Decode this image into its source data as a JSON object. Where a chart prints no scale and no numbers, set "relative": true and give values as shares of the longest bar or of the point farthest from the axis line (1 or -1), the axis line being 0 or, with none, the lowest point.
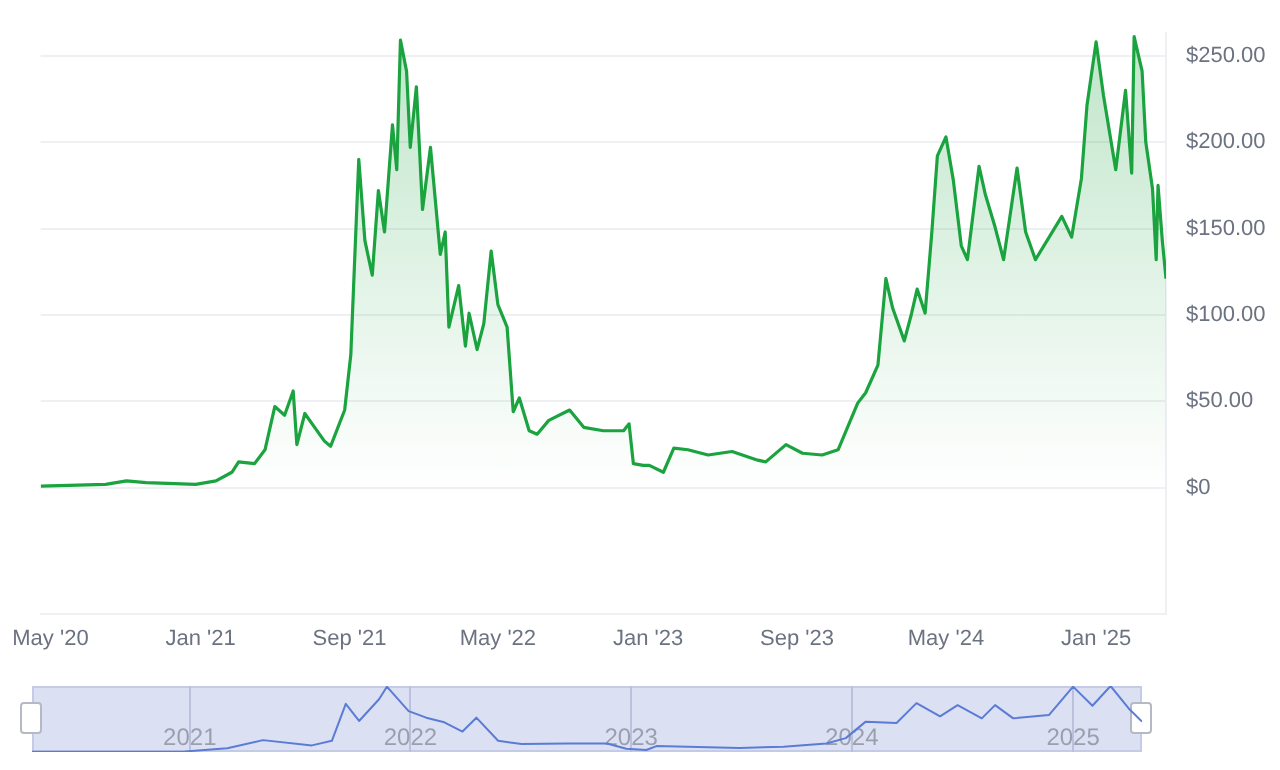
{
  "chart_data": [
    {
      "type": "area",
      "xlim": [
        "2020-04-15",
        "2025-04-25"
      ],
      "ylim": [
        -73,
        263
      ],
      "xticks": [
        {
          "value": "2020-05-01",
          "label": "May '20"
        },
        {
          "value": "2021-01-01",
          "label": "Jan '21"
        },
        {
          "value": "2021-09-01",
          "label": "Sep '21"
        },
        {
          "value": "2022-05-01",
          "label": "May '22"
        },
        {
          "value": "2023-01-01",
          "label": "Jan '23"
        },
        {
          "value": "2023-09-01",
          "label": "Sep '23"
        },
        {
          "value": "2024-05-01",
          "label": "May '24"
        },
        {
          "value": "2025-01-01",
          "label": "Jan '25"
        }
      ],
      "yticks": [
        {
          "value": 0,
          "label": "$0"
        },
        {
          "value": 50,
          "label": "$50.00"
        },
        {
          "value": 100,
          "label": "$100.00"
        },
        {
          "value": 150,
          "label": "$150.00"
        },
        {
          "value": 200,
          "label": "$200.00"
        },
        {
          "value": 250,
          "label": "$250.00"
        }
      ],
      "grid": "y",
      "series": [
        {
          "color": "#1aa33f",
          "x": [
            "2020-04-15",
            "2020-07-30",
            "2020-09-02",
            "2020-10-04",
            "2020-12-24",
            "2021-01-26",
            "2021-02-21",
            "2021-03-04",
            "2021-03-30",
            "2021-04-16",
            "2021-05-02",
            "2021-05-18",
            "2021-06-01",
            "2021-06-07",
            "2021-06-20",
            "2021-07-06",
            "2021-07-22",
            "2021-08-01",
            "2021-08-24",
            "2021-09-03",
            "2021-09-16",
            "2021-09-26",
            "2021-10-08",
            "2021-10-18",
            "2021-10-28",
            "2021-11-10",
            "2021-11-17",
            "2021-11-23",
            "2021-12-03",
            "2021-12-09",
            "2021-12-19",
            "2021-12-29",
            "2022-01-11",
            "2022-01-27",
            "2022-02-04",
            "2022-02-10",
            "2022-02-26",
            "2022-03-09",
            "2022-03-15",
            "2022-03-28",
            "2022-04-08",
            "2022-04-20",
            "2022-05-01",
            "2022-05-16",
            "2022-05-26",
            "2022-06-05",
            "2022-06-21",
            "2022-07-04",
            "2022-07-23",
            "2022-08-26",
            "2022-09-18",
            "2022-10-20",
            "2022-11-22",
            "2022-12-01",
            "2022-12-08",
            "2022-12-24",
            "2023-01-03",
            "2023-01-26",
            "2023-02-12",
            "2023-03-07",
            "2023-04-09",
            "2023-05-18",
            "2023-06-29",
            "2023-07-12",
            "2023-08-14",
            "2023-09-10",
            "2023-10-12",
            "2023-11-07",
            "2023-11-20",
            "2023-12-09",
            "2023-12-22",
            "2024-01-11",
            "2024-01-24",
            "2024-02-04",
            "2024-02-23",
            "2024-03-06",
            "2024-03-15",
            "2024-03-28",
            "2024-04-08",
            "2024-04-17",
            "2024-05-01",
            "2024-05-13",
            "2024-05-26",
            "2024-06-05",
            "2024-06-24",
            "2024-07-04",
            "2024-07-20",
            "2024-08-03",
            "2024-08-25",
            "2024-09-08",
            "2024-09-24",
            "2024-11-06",
            "2024-11-22",
            "2024-12-08",
            "2024-12-17",
            "2025-01-01",
            "2025-01-13",
            "2025-02-02",
            "2025-02-18",
            "2025-02-28",
            "2025-03-04",
            "2025-03-17",
            "2025-03-23",
            "2025-04-03",
            "2025-04-09",
            "2025-04-12",
            "2025-04-19",
            "2025-04-25"
          ],
          "values": [
            1,
            2,
            4,
            3,
            2,
            4,
            9,
            15,
            14,
            22,
            47,
            42,
            56,
            25,
            43,
            35,
            27,
            24,
            45,
            77,
            190,
            143,
            123,
            172,
            148,
            210,
            184,
            259,
            241,
            197,
            232,
            161,
            197,
            135,
            148,
            93,
            117,
            82,
            101,
            80,
            95,
            137,
            106,
            93,
            44,
            52,
            33,
            31,
            39,
            45,
            35,
            33,
            33,
            37,
            14,
            13,
            13,
            9,
            23,
            22,
            19,
            21,
            16,
            15,
            25,
            20,
            19,
            22,
            33,
            49,
            55,
            71,
            121,
            104,
            85,
            101,
            115,
            101,
            148,
            192,
            203,
            178,
            140,
            132,
            186,
            170,
            151,
            132,
            185,
            148,
            132,
            157,
            145,
            179,
            221,
            258,
            227,
            184,
            230,
            182,
            261,
            241,
            200,
            173,
            132,
            175,
            143,
            121
          ]
        }
      ]
    },
    {
      "type": "line",
      "relative": true,
      "tick_labels": "x",
      "grid": "x",
      "xlim": [
        "2020-04-15",
        "2025-04-25"
      ],
      "xticks": [
        {
          "value": "2021-01-01",
          "label": "2021"
        },
        {
          "value": "2022-01-01",
          "label": "2022"
        },
        {
          "value": "2023-01-01",
          "label": "2023"
        },
        {
          "value": "2024-01-01",
          "label": "2024"
        },
        {
          "value": "2025-01-01",
          "label": "2025"
        }
      ],
      "series": [
        {
          "color": "#5b7bd5",
          "x": [
            "2020-04-15",
            "2020-12-24",
            "2021-03-04",
            "2021-05-02",
            "2021-07-22",
            "2021-08-24",
            "2021-09-16",
            "2021-10-08",
            "2021-11-10",
            "2021-11-23",
            "2021-12-29",
            "2022-01-27",
            "2022-02-26",
            "2022-03-28",
            "2022-04-20",
            "2022-05-26",
            "2022-07-04",
            "2022-09-18",
            "2022-11-22",
            "2022-12-24",
            "2023-01-26",
            "2023-02-12",
            "2023-06-29",
            "2023-09-10",
            "2023-11-20",
            "2023-12-22",
            "2024-01-24",
            "2024-03-15",
            "2024-04-17",
            "2024-05-26",
            "2024-06-24",
            "2024-08-03",
            "2024-08-25",
            "2024-09-24",
            "2024-11-22",
            "2025-01-01",
            "2025-02-02",
            "2025-03-04",
            "2025-04-03",
            "2025-04-25"
          ],
          "values": [
            0.004,
            0.008,
            0.057,
            0.18,
            0.1,
            0.17,
            0.73,
            0.47,
            0.8,
            0.99,
            0.62,
            0.52,
            0.45,
            0.31,
            0.52,
            0.17,
            0.12,
            0.13,
            0.13,
            0.05,
            0.03,
            0.09,
            0.06,
            0.08,
            0.13,
            0.21,
            0.46,
            0.44,
            0.74,
            0.54,
            0.71,
            0.51,
            0.71,
            0.51,
            0.56,
            0.99,
            0.7,
            1,
            0.66,
            0.46
          ]
        }
      ]
    }
  ]
}
